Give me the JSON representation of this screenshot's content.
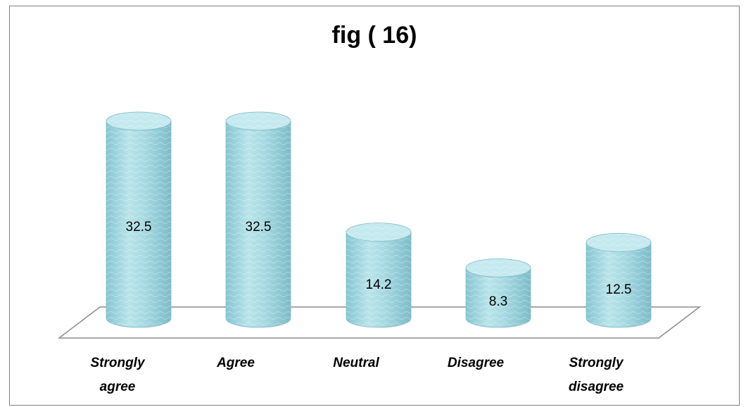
{
  "chart_data": {
    "type": "bar",
    "style": "3d-cylinder",
    "title": "fig ( 16)",
    "categories": [
      "Strongly agree",
      "Agree",
      "Neutral",
      "Disagree",
      "Strongly disagree"
    ],
    "category_lines": [
      [
        "Strongly",
        "agree"
      ],
      [
        "Agree"
      ],
      [
        "Neutral"
      ],
      [
        "Disagree"
      ],
      [
        "Strongly",
        "disagree"
      ]
    ],
    "values": [
      32.5,
      32.5,
      14.2,
      8.3,
      12.5
    ],
    "value_labels": [
      "32.5",
      "32.5",
      "14.2",
      "8.3",
      "12.5"
    ],
    "xlabel": "",
    "ylabel": "",
    "grid": false,
    "legend": "none"
  },
  "colors": {
    "bar_fill": "#a8dbe3",
    "bar_top": "#c4e9ef",
    "bar_edge": "#7fb9c4",
    "floor_stroke": "#8c8c8c",
    "frame_border": "#7f7f7f"
  }
}
